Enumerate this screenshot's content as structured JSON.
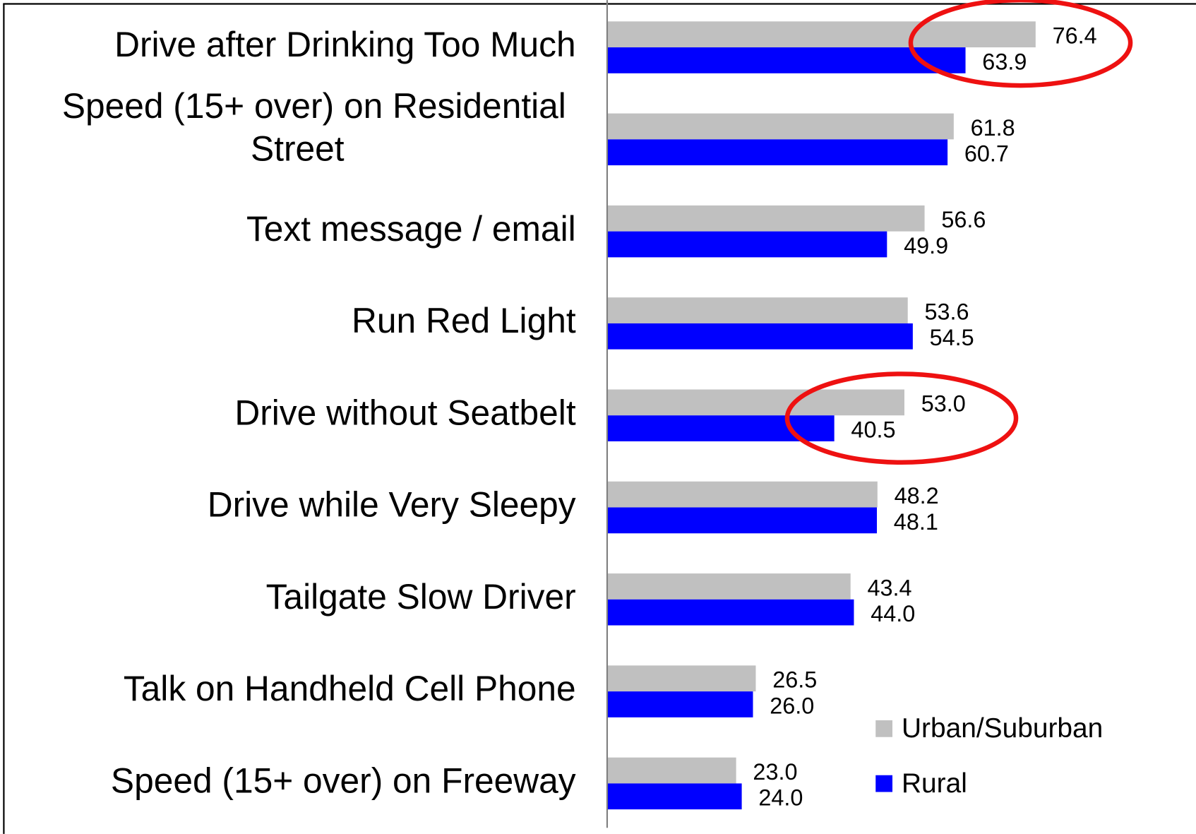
{
  "chart_data": {
    "type": "barh",
    "categories": [
      "Drive after Drinking Too Much",
      "Speed (15+ over) on Residential Street",
      "Text message / email",
      "Run Red Light",
      "Drive without Seatbelt",
      "Drive while Very Sleepy",
      "Tailgate Slow Driver",
      "Talk on Handheld Cell Phone",
      "Speed (15+ over) on Freeway"
    ],
    "series": [
      {
        "name": "Urban/Suburban",
        "color": "#c0c0c0",
        "values": [
          76.4,
          61.8,
          56.6,
          53.6,
          53.0,
          48.2,
          43.4,
          26.5,
          23.0
        ],
        "value_labels": [
          "76.4",
          "61.8",
          "56.6",
          "53.6",
          "53.0",
          "48.2",
          "43.4",
          "26.5",
          "23.0"
        ]
      },
      {
        "name": "Rural",
        "color": "#0000ff",
        "values": [
          63.9,
          60.7,
          49.9,
          54.5,
          40.5,
          48.1,
          44.0,
          26.0,
          24.0
        ],
        "value_labels": [
          "63.9",
          "60.7",
          "49.9",
          "54.5",
          "40.5",
          "48.1",
          "44.0",
          "26.0",
          "24.0"
        ]
      }
    ],
    "xlim": [
      0,
      105
    ],
    "legend": "lower right"
  }
}
